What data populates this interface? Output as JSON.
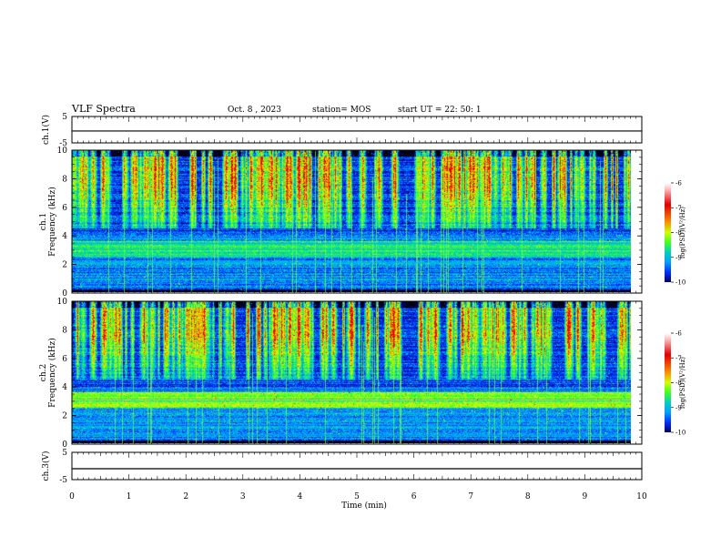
{
  "header": {
    "title": "VLF Spectra",
    "date": "Oct. 8 , 2023",
    "station": "station= MOS",
    "start": "start UT =   22: 50: 1"
  },
  "colors": {
    "colormap": [
      "#000000",
      "#000090",
      "#0030ff",
      "#00aaff",
      "#00e0a0",
      "#40ff20",
      "#d0ff00",
      "#ffd000",
      "#ff6000",
      "#e00000",
      "#ffffff"
    ]
  },
  "chart_data": [
    {
      "type": "line",
      "name": "ch1-waveform",
      "ylabel": "ch.1(V)",
      "ylim": [
        -5,
        5
      ],
      "yticks": [
        "5",
        "-5"
      ],
      "xlim": [
        0,
        10
      ],
      "x": [
        0,
        10
      ],
      "values": [
        -0.5,
        -0.5
      ]
    },
    {
      "type": "heatmap",
      "name": "ch1-spectrogram",
      "ylabel": "ch.1\nFrequency (kHz)",
      "ylim": [
        0,
        10
      ],
      "yticks": [
        "0",
        "2",
        "4",
        "6",
        "8",
        "10"
      ],
      "xlim": [
        0,
        9.83
      ],
      "colorbar": {
        "label": "log(PSD)(V²/Hz)",
        "range": [
          -10,
          -6
        ],
        "ticks": [
          "-6",
          "-7",
          "-8",
          "-9",
          "-10"
        ]
      }
    },
    {
      "type": "heatmap",
      "name": "ch2-spectrogram",
      "ylabel": "ch.2\nFrequency (kHz)",
      "ylim": [
        0,
        10
      ],
      "yticks": [
        "0",
        "2",
        "4",
        "6",
        "8",
        "10"
      ],
      "xlim": [
        0,
        9.83
      ],
      "colorbar": {
        "label": "log(PSD)(V²/Hz)",
        "range": [
          -10,
          -6
        ],
        "ticks": [
          "-6",
          "-7",
          "-8",
          "-9",
          "-10"
        ]
      }
    },
    {
      "type": "line",
      "name": "ch3-waveform",
      "ylabel": "ch.3(V)",
      "ylim": [
        -5,
        5
      ],
      "yticks": [
        "5",
        "-5"
      ],
      "xlim": [
        0,
        10
      ],
      "x": [
        0,
        10
      ],
      "values": [
        -1,
        -1
      ]
    }
  ],
  "xaxis": {
    "label": "Time (min)",
    "ticks": [
      "0",
      "1",
      "2",
      "3",
      "4",
      "5",
      "6",
      "7",
      "8",
      "9",
      "10"
    ]
  }
}
